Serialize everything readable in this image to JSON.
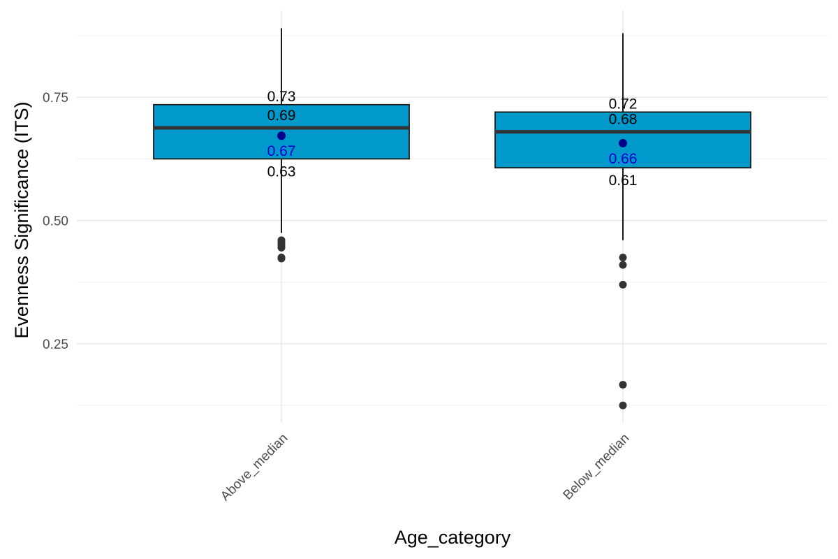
{
  "chart_data": {
    "type": "box",
    "title": "",
    "xlabel": "Age_category",
    "ylabel": "Evenness Significance (ITS)",
    "y_ticks": [
      0.25,
      0.5,
      0.75
    ],
    "y_tick_labels": [
      "0.25",
      "0.50",
      "0.75"
    ],
    "ylim": [
      0.09,
      0.93
    ],
    "grid": true,
    "colors": {
      "box_fill": "#0099CC",
      "box_border": "#1a1a1a",
      "median_line": "#333333",
      "mean_point": "#00008B",
      "mean_label": "#0000CD",
      "outlier": "#333333",
      "grid_major": "#e5e5e5",
      "grid_minor": "#f0f0f0"
    },
    "categories": [
      "Above_median",
      "Below_median"
    ],
    "boxes": [
      {
        "category": "Above_median",
        "whisker_low": 0.475,
        "q1": 0.625,
        "median": 0.688,
        "q3": 0.735,
        "whisker_high": 0.89,
        "mean": 0.672,
        "outliers": [
          0.46,
          0.455,
          0.45,
          0.445,
          0.425,
          0.423
        ],
        "labels": {
          "q3": "0.73",
          "median": "0.69",
          "mean": "0.67",
          "q1": "0.63"
        }
      },
      {
        "category": "Below_median",
        "whisker_low": 0.46,
        "q1": 0.607,
        "median": 0.68,
        "q3": 0.72,
        "whisker_high": 0.88,
        "mean": 0.657,
        "outliers": [
          0.425,
          0.41,
          0.37,
          0.167,
          0.125
        ],
        "labels": {
          "q3": "0.72",
          "median": "0.68",
          "mean": "0.66",
          "q1": "0.61"
        }
      }
    ]
  }
}
